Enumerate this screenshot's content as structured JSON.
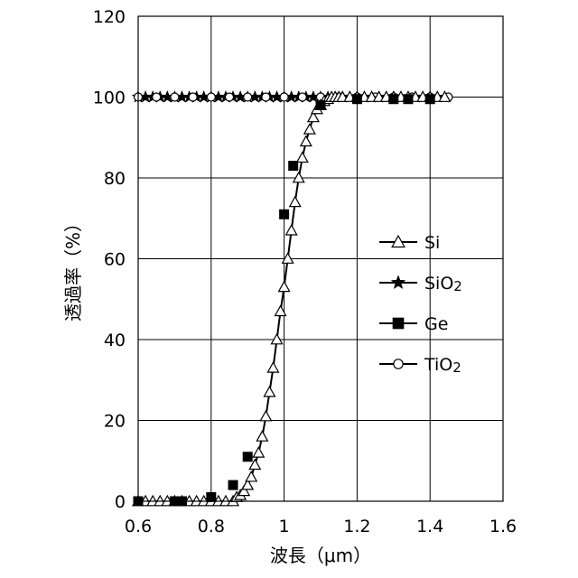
{
  "chart_data": {
    "type": "scatter",
    "xlabel": "波長（μm）",
    "ylabel": "透過率（%）",
    "xlim": [
      0.6,
      1.6
    ],
    "ylim": [
      0,
      120
    ],
    "x_ticks": [
      "0.6",
      "0.8",
      "1",
      "1.2",
      "1.4",
      "1.6"
    ],
    "y_ticks": [
      "0",
      "20",
      "40",
      "60",
      "80",
      "100",
      "120"
    ],
    "grid": true,
    "legend_position": "right",
    "series": [
      {
        "name": "Si",
        "marker": "triangle-open",
        "line": true,
        "x": [
          0.6,
          0.62,
          0.64,
          0.66,
          0.68,
          0.7,
          0.72,
          0.74,
          0.76,
          0.78,
          0.8,
          0.82,
          0.84,
          0.86,
          0.87,
          0.88,
          0.89,
          0.9,
          0.91,
          0.92,
          0.93,
          0.94,
          0.95,
          0.96,
          0.97,
          0.98,
          0.99,
          1.0,
          1.01,
          1.02,
          1.03,
          1.04,
          1.05,
          1.06,
          1.07,
          1.08,
          1.09,
          1.1,
          1.11,
          1.12,
          1.13,
          1.14,
          1.15,
          1.16,
          1.18,
          1.2,
          1.22,
          1.24,
          1.26,
          1.28,
          1.3,
          1.32,
          1.34,
          1.36,
          1.38,
          1.4,
          1.42,
          1.44
        ],
        "y": [
          0,
          0,
          0,
          0,
          0,
          0,
          0,
          0,
          0,
          0,
          0,
          0,
          0,
          0,
          1,
          1.5,
          2.5,
          4,
          6,
          9,
          12,
          16,
          21,
          27,
          33,
          40,
          47,
          53,
          60,
          67,
          74,
          80,
          85,
          89,
          92,
          95,
          97,
          98,
          99,
          99.5,
          100,
          100,
          100,
          100,
          100,
          100,
          100,
          100,
          100,
          100,
          100,
          100,
          100,
          100,
          100,
          100,
          100,
          100
        ]
      },
      {
        "name": "SiO2",
        "marker": "star",
        "line": true,
        "x": [
          0.6,
          0.62,
          0.64,
          0.66,
          0.68,
          0.7,
          0.72,
          0.74,
          0.76,
          0.78,
          0.8,
          0.82,
          0.84,
          0.86,
          0.88,
          0.9,
          0.92,
          0.94,
          0.96,
          0.98,
          1.0,
          1.02,
          1.04,
          1.06,
          1.08,
          1.1,
          1.12,
          1.14,
          1.16,
          1.18,
          1.2,
          1.22,
          1.24,
          1.26,
          1.28,
          1.3,
          1.32,
          1.34,
          1.36,
          1.38,
          1.4,
          1.42,
          1.44
        ],
        "y": [
          100,
          100,
          100,
          100,
          100,
          100,
          100,
          100,
          100,
          100,
          100,
          100,
          100,
          100,
          100,
          100,
          100,
          100,
          100,
          100,
          100,
          100,
          100,
          100,
          100,
          100,
          100,
          100,
          100,
          100,
          100,
          100,
          100,
          100,
          100,
          100,
          100,
          100,
          100,
          100,
          100,
          100,
          100
        ]
      },
      {
        "name": "Ge",
        "marker": "square-filled",
        "line": false,
        "x": [
          0.6,
          0.7,
          0.72,
          0.8,
          0.86,
          0.9,
          1.0,
          1.025,
          1.1,
          1.2,
          1.3,
          1.34,
          1.4
        ],
        "y": [
          0,
          0,
          0,
          1,
          4,
          11,
          71,
          83,
          98,
          99.5,
          99.5,
          99.5,
          99.5
        ]
      },
      {
        "name": "TiO2",
        "marker": "circle-open",
        "line": true,
        "x": [
          0.6,
          0.65,
          0.7,
          0.75,
          0.8,
          0.85,
          0.9,
          0.95,
          1.0,
          1.05,
          1.1,
          1.15,
          1.2,
          1.25,
          1.3,
          1.35,
          1.4,
          1.45
        ],
        "y": [
          100,
          100,
          100,
          100,
          100,
          100,
          100,
          100,
          100,
          100,
          100,
          100,
          100,
          100,
          100,
          100,
          100,
          100
        ]
      }
    ],
    "legend": [
      {
        "label": "Si",
        "sub": ""
      },
      {
        "label": "SiO",
        "sub": "2"
      },
      {
        "label": "Ge",
        "sub": ""
      },
      {
        "label": "TiO",
        "sub": "2"
      }
    ]
  }
}
